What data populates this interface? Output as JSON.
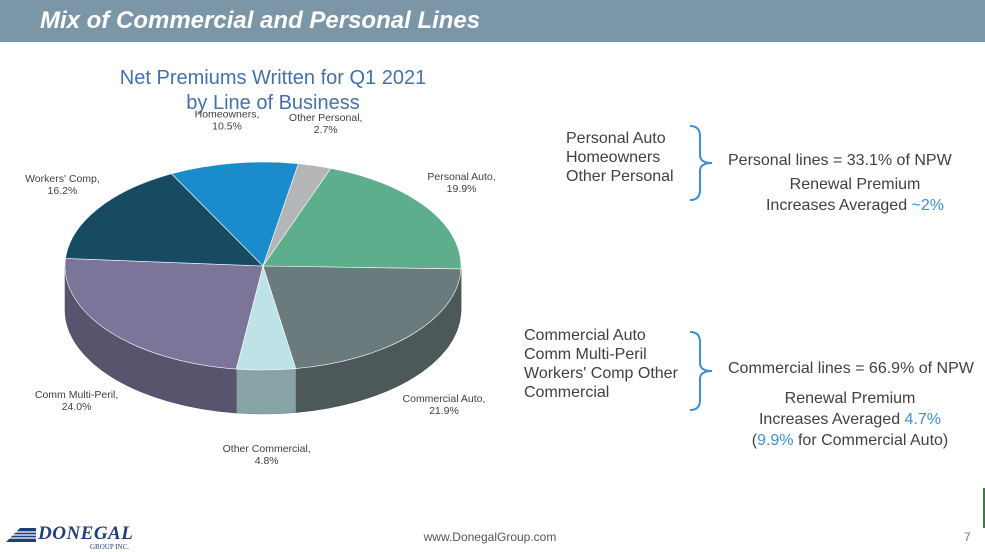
{
  "header": {
    "title": "Mix of Commercial and Personal Lines"
  },
  "chart_data": {
    "type": "pie",
    "title": "Net Premiums Written for Q1 2021 by Line of Business",
    "title_lines": [
      "Net Premiums Written for Q1 2021",
      "by Line of Business"
    ],
    "slices": [
      {
        "name": "Personal Auto",
        "value": 19.9,
        "label": "Personal Auto,",
        "pct": "19.9%",
        "color": "#5cae8c"
      },
      {
        "name": "Commercial Auto",
        "value": 21.9,
        "label": "Commercial Auto,",
        "pct": "21.9%",
        "color": "#6b7a7c"
      },
      {
        "name": "Other Commercial",
        "value": 4.8,
        "label": "Other Commercial,",
        "pct": "4.8%",
        "color": "#bde3e6"
      },
      {
        "name": "Comm Multi-Peril",
        "value": 24.0,
        "label": "Comm Multi-Peril,",
        "pct": "24.0%",
        "color": "#7b7599"
      },
      {
        "name": "Workers' Comp",
        "value": 16.2,
        "label": "Workers' Comp,",
        "pct": "16.2%",
        "color": "#174a63"
      },
      {
        "name": "Homeowners",
        "value": 10.5,
        "label": "Homeowners,",
        "pct": "10.5%",
        "color": "#1b8ccb"
      },
      {
        "name": "Other Personal",
        "value": 2.7,
        "label": "Other Personal,",
        "pct": "2.7%",
        "color": "#b3b5b6"
      }
    ]
  },
  "personal": {
    "items": [
      "Personal Auto",
      "Homeowners",
      "Other Personal"
    ],
    "summary": "Personal lines = 33.1% of NPW",
    "renewal_line1": "Renewal Premium",
    "renewal_line2_prefix": "Increases Averaged ",
    "renewal_value": "~2%"
  },
  "commercial": {
    "items": [
      "Commercial Auto",
      "Comm Multi-Peril",
      "Workers' Comp Other",
      "Commercial"
    ],
    "summary": "Commercial lines = 66.9% of NPW",
    "renewal_line1": "Renewal Premium",
    "renewal_line2_prefix": "Increases Averaged ",
    "renewal_value": "4.7%",
    "auto_open": "(",
    "auto_value": "9.9%",
    "auto_suffix": " for Commercial Auto)"
  },
  "colors": {
    "header": "#7b97a7",
    "accent": "#3d8fd0",
    "title": "#4472a8",
    "brace": "#3d8fd0"
  },
  "footer": {
    "url": "www.DonegalGroup.com",
    "page": "7",
    "logo": "DONEGAL",
    "logo_sub": "GROUP INC."
  }
}
